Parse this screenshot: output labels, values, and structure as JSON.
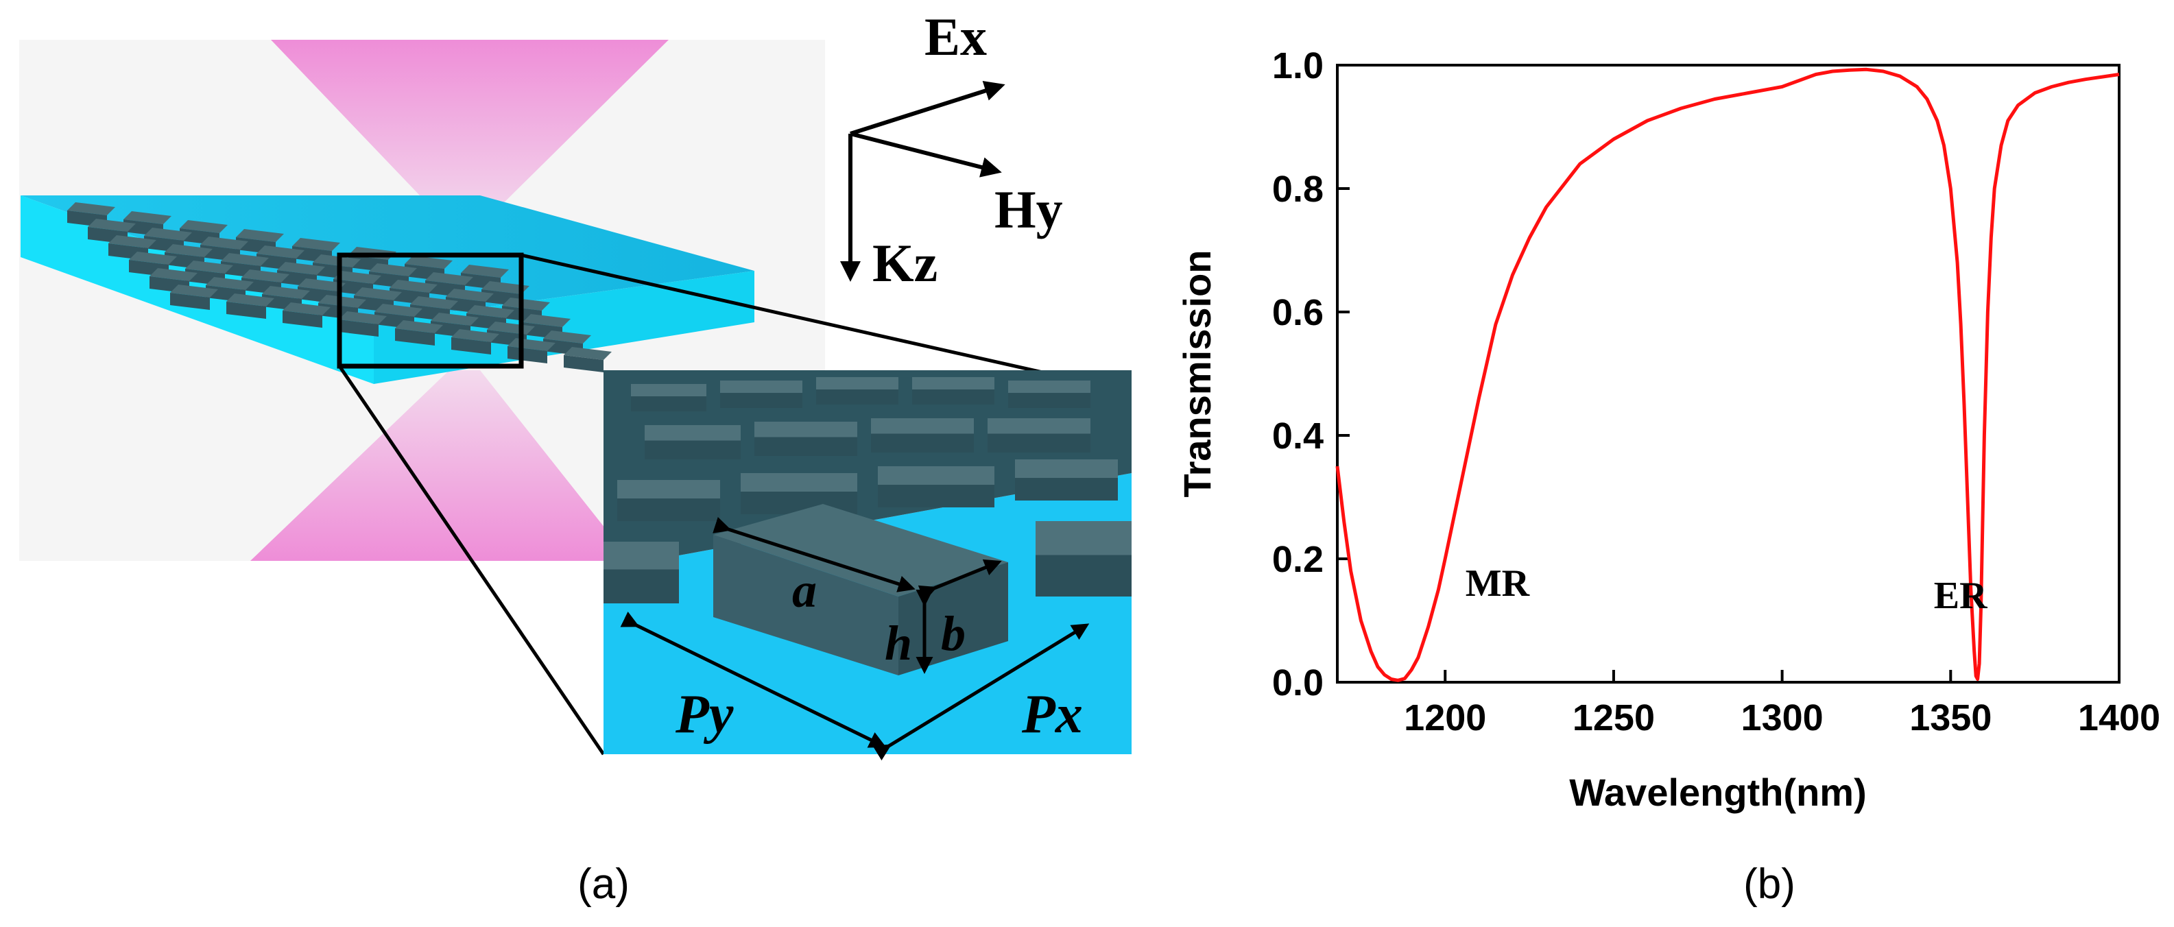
{
  "panel_a": {
    "caption": "(a)",
    "axes": {
      "e_label": "Ex",
      "h_label": "Hy",
      "k_label": "Kz"
    },
    "dimensions": {
      "a": "a",
      "b": "b",
      "h": "h",
      "py": "Py",
      "px": "Px"
    }
  },
  "panel_b": {
    "caption": "(b)"
  },
  "colors": {
    "beam": "#ee88d6",
    "substrate": "#19d7f7",
    "block": "#3d5e68",
    "curve": "#ff1010"
  },
  "chart_data": {
    "type": "line",
    "xlabel": "Wavelength(nm)",
    "ylabel": "Transmission",
    "xlim": [
      1168,
      1400
    ],
    "ylim": [
      0.0,
      1.0
    ],
    "xticks": [
      1200,
      1250,
      1300,
      1350,
      1400
    ],
    "yticks": [
      0.0,
      0.2,
      0.4,
      0.6,
      0.8,
      1.0
    ],
    "xtick_labels": [
      "1200",
      "1250",
      "1300",
      "1350",
      "1400"
    ],
    "ytick_labels": [
      "0.0",
      "0.2",
      "0.4",
      "0.6",
      "0.8",
      "1.0"
    ],
    "annotations": [
      {
        "text": "MR",
        "x": 1206,
        "y": 0.14
      },
      {
        "text": "ER",
        "x": 1345,
        "y": 0.12
      }
    ],
    "series": [
      {
        "name": "Transmission",
        "x": [
          1168,
          1170,
          1172,
          1175,
          1178,
          1180,
          1182,
          1184,
          1186,
          1188,
          1190,
          1192,
          1195,
          1198,
          1200,
          1205,
          1210,
          1215,
          1220,
          1225,
          1230,
          1240,
          1250,
          1260,
          1270,
          1280,
          1290,
          1300,
          1305,
          1310,
          1315,
          1320,
          1325,
          1330,
          1335,
          1340,
          1343,
          1346,
          1348,
          1350,
          1352,
          1353,
          1354,
          1355,
          1356,
          1357,
          1357.5,
          1358,
          1358.5,
          1359,
          1360,
          1361,
          1362,
          1363,
          1365,
          1367,
          1370,
          1375,
          1380,
          1385,
          1390,
          1395,
          1400
        ],
        "y": [
          0.35,
          0.26,
          0.18,
          0.1,
          0.05,
          0.025,
          0.012,
          0.005,
          0.003,
          0.006,
          0.02,
          0.04,
          0.09,
          0.15,
          0.2,
          0.33,
          0.46,
          0.58,
          0.66,
          0.72,
          0.77,
          0.84,
          0.88,
          0.91,
          0.93,
          0.945,
          0.955,
          0.965,
          0.975,
          0.985,
          0.99,
          0.992,
          0.993,
          0.99,
          0.982,
          0.965,
          0.945,
          0.91,
          0.87,
          0.8,
          0.68,
          0.58,
          0.45,
          0.3,
          0.15,
          0.05,
          0.01,
          0.005,
          0.03,
          0.12,
          0.4,
          0.6,
          0.72,
          0.8,
          0.87,
          0.91,
          0.935,
          0.955,
          0.965,
          0.972,
          0.977,
          0.981,
          0.985
        ]
      }
    ]
  }
}
